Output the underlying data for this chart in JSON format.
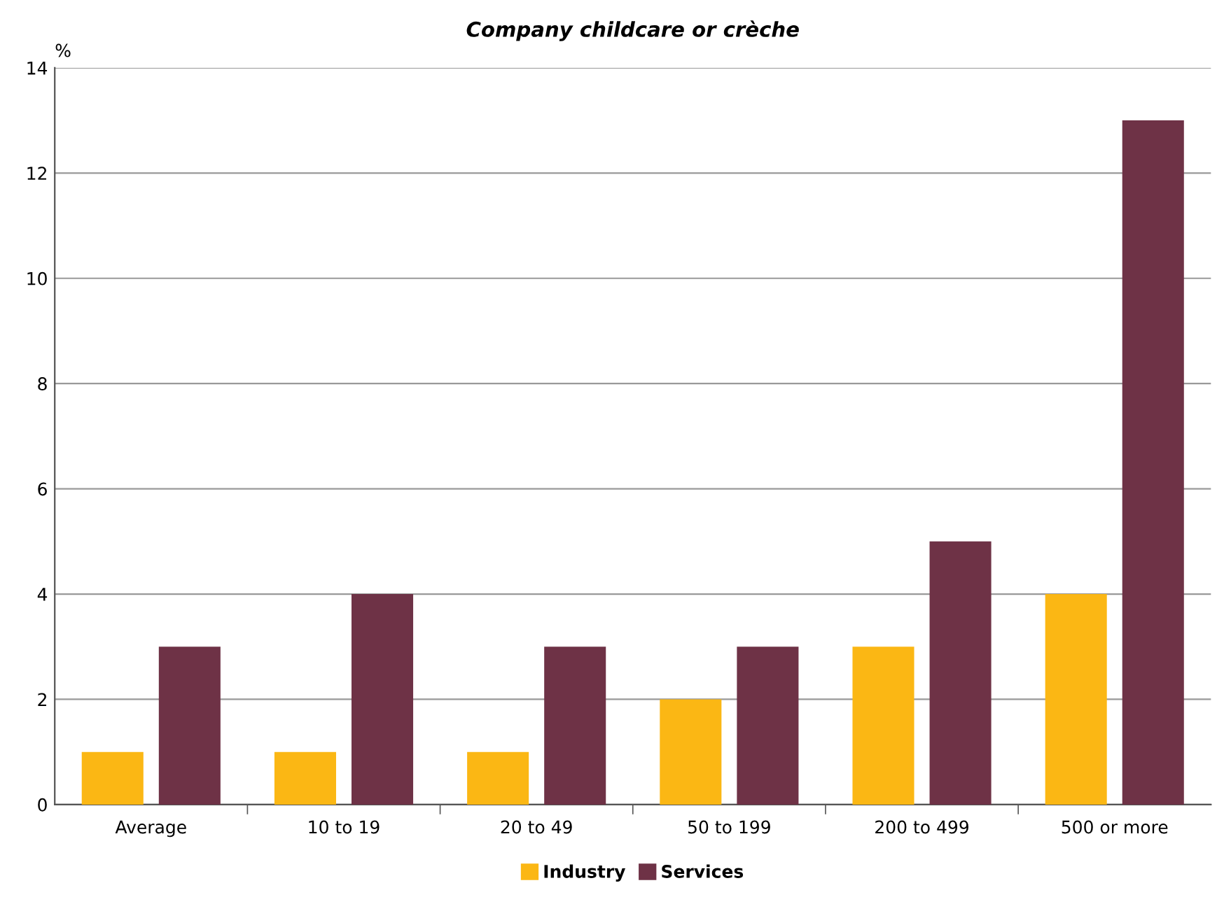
{
  "chart_data": {
    "type": "bar",
    "title": "Company childcare or crèche",
    "ylabel": "%",
    "categories": [
      "Average",
      "10 to 19",
      "20 to 49",
      "50 to 199",
      "200 to 499",
      "500 or more"
    ],
    "series": [
      {
        "name": "Industry",
        "color": "#fbb714",
        "values": [
          1,
          1,
          1,
          2,
          3,
          4
        ]
      },
      {
        "name": "Services",
        "color": "#6e3246",
        "values": [
          3,
          4,
          3,
          3,
          5,
          13
        ]
      }
    ],
    "ylim": [
      0,
      14
    ],
    "yticks": [
      0,
      2,
      4,
      6,
      8,
      10,
      12,
      14
    ],
    "grid": "y",
    "legend": "bottom"
  }
}
